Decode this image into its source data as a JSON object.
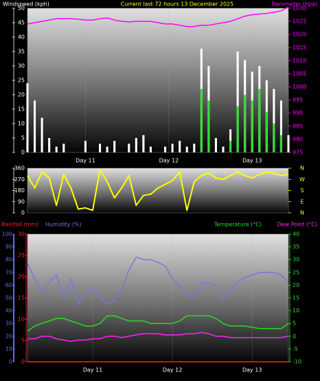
{
  "chart_data": [
    {
      "type": "bar",
      "title": "Current last 72 hours 13 December 2025",
      "x": [
        0,
        2,
        4,
        6,
        8,
        10,
        12,
        14,
        16,
        18,
        20,
        22,
        24,
        26,
        28,
        30,
        32,
        34,
        36,
        38,
        40,
        42,
        44,
        46,
        48,
        50,
        52,
        54,
        56,
        58,
        60,
        62,
        64,
        66,
        68,
        70,
        72
      ],
      "xlim": [
        0,
        72
      ],
      "xticks": [
        {
          "value": 16,
          "label": "Day 11"
        },
        {
          "value": 39,
          "label": "Day 12"
        },
        {
          "value": 62,
          "label": "Day 13"
        }
      ],
      "ylim": [
        0,
        50
      ],
      "yticks": [
        0,
        5,
        10,
        15,
        20,
        25,
        30,
        35,
        40,
        45,
        50
      ],
      "ycolor": "#ffffff",
      "y2lim": [
        975,
        1030
      ],
      "y2ticks": [
        975,
        980,
        985,
        990,
        995,
        1000,
        1005,
        1010,
        1015,
        1020,
        1025,
        1030
      ],
      "y2color": "#ff00ff",
      "series": [
        {
          "name": "Windspeed (kph)",
          "color": "#ffffff",
          "values": [
            24,
            18,
            12,
            5,
            2,
            3,
            0,
            0,
            4,
            0,
            3,
            2,
            4,
            0,
            3,
            5,
            6,
            2,
            0,
            2,
            3,
            4,
            2,
            3,
            36,
            30,
            5,
            2,
            8,
            35,
            32,
            28,
            30,
            25,
            22,
            18,
            6
          ]
        },
        {
          "color": "#33dd33",
          "values": [
            0,
            0,
            0,
            0,
            0,
            0,
            0,
            0,
            0,
            0,
            0,
            0,
            0,
            0,
            0,
            0,
            0,
            0,
            0,
            0,
            0,
            0,
            0,
            0,
            22,
            18,
            0,
            0,
            4,
            16,
            20,
            18,
            22,
            14,
            10,
            6,
            0
          ]
        },
        {
          "name": "Barometer (hpa)",
          "type": "line",
          "axis": "y2",
          "color": "#ff00ff",
          "values": [
            1024,
            1024.5,
            1025,
            1025.5,
            1026,
            1026,
            1026,
            1025.8,
            1025.5,
            1025.5,
            1026,
            1026.3,
            1025.5,
            1025,
            1024.8,
            1025,
            1025,
            1025,
            1024.5,
            1024,
            1024,
            1023.5,
            1023,
            1023,
            1023.5,
            1023.5,
            1024,
            1024.5,
            1025,
            1026,
            1027,
            1027.5,
            1027.8,
            1028,
            1028.5,
            1029,
            1030.5
          ]
        }
      ]
    },
    {
      "type": "line",
      "x": [
        0,
        2,
        4,
        6,
        8,
        10,
        12,
        14,
        16,
        18,
        20,
        22,
        24,
        26,
        28,
        30,
        32,
        34,
        36,
        38,
        40,
        42,
        44,
        46,
        48,
        50,
        52,
        54,
        56,
        58,
        60,
        62,
        64,
        66,
        68,
        70,
        72
      ],
      "xlim": [
        0,
        72
      ],
      "ylim": [
        0,
        360
      ],
      "yticks": [
        0,
        90,
        180,
        270,
        360
      ],
      "ycolor": "#ffffff",
      "y2lim": [
        0,
        360
      ],
      "y2ticks": [
        {
          "value": 360,
          "label": "N"
        },
        {
          "value": 270,
          "label": "W"
        },
        {
          "value": 180,
          "label": "S"
        },
        {
          "value": 90,
          "label": "E"
        },
        {
          "value": 0,
          "label": "N"
        }
      ],
      "y2color": "#ffff00",
      "series": [
        {
          "color": "#ffff00",
          "values": [
            300,
            200,
            330,
            280,
            60,
            310,
            200,
            30,
            40,
            20,
            350,
            250,
            120,
            200,
            300,
            60,
            140,
            150,
            200,
            230,
            260,
            330,
            20,
            250,
            300,
            320,
            280,
            270,
            300,
            330,
            300,
            280,
            310,
            330,
            320,
            300,
            310
          ]
        }
      ]
    },
    {
      "type": "line",
      "x": [
        0,
        2,
        4,
        6,
        8,
        10,
        12,
        14,
        16,
        18,
        20,
        22,
        24,
        26,
        28,
        30,
        32,
        34,
        36,
        38,
        40,
        42,
        44,
        46,
        48,
        50,
        52,
        54,
        56,
        58,
        60,
        62,
        64,
        66,
        68,
        70,
        72
      ],
      "xlim": [
        0,
        72
      ],
      "xticks": [
        {
          "value": 18,
          "label": "Day 11"
        },
        {
          "value": 40,
          "label": "Day 12"
        },
        {
          "value": 62,
          "label": "Day 13"
        }
      ],
      "ylim": [
        0,
        100
      ],
      "yticks": [
        0,
        10,
        20,
        30,
        40,
        50,
        60,
        70,
        80,
        90,
        100
      ],
      "ycolor": "#6666ff",
      "y3lim": [
        0,
        30
      ],
      "y3ticks": [
        0,
        5,
        10,
        15,
        20,
        25,
        30
      ],
      "y3color": "#ff2222",
      "y2lim": [
        -10,
        40
      ],
      "y2ticks": [
        -10,
        -5,
        0,
        5,
        10,
        15,
        20,
        25,
        30,
        35,
        40
      ],
      "y2color": "#33dd33",
      "series": [
        {
          "name": "Rainfall (mm)",
          "axis": "y3",
          "color": "#ff2222",
          "values": [
            0,
            0,
            0,
            0,
            0,
            0,
            0,
            0,
            0,
            0,
            0,
            0,
            0,
            0,
            0,
            0,
            0,
            0,
            0,
            0,
            0,
            0,
            0,
            0,
            0,
            0,
            0,
            0,
            0,
            0,
            0,
            0,
            0,
            0,
            0,
            0,
            0
          ]
        },
        {
          "name": "Humidity (%)",
          "color": "#7777dd",
          "values": [
            77,
            65,
            55,
            62,
            68,
            50,
            65,
            45,
            55,
            58,
            50,
            45,
            48,
            55,
            72,
            82,
            80,
            80,
            78,
            75,
            65,
            60,
            52,
            50,
            62,
            62,
            60,
            48,
            55,
            62,
            66,
            68,
            70,
            70,
            70,
            68,
            62
          ]
        },
        {
          "name": "Temperature (°C)",
          "axis": "y2",
          "color": "#22dd22",
          "values": [
            2,
            4,
            5,
            6,
            7,
            7,
            6,
            5,
            4,
            4,
            5,
            8,
            8,
            7,
            6,
            6,
            6,
            5,
            5,
            5,
            5,
            6,
            8,
            8,
            8,
            8,
            7,
            5,
            4,
            4,
            4,
            3.5,
            3,
            3,
            3,
            3,
            5
          ]
        },
        {
          "name": "Dew Point (°C)",
          "axis": "y2",
          "color": "#ff22ff",
          "values": [
            -1,
            -1,
            0,
            0,
            -1,
            -1.5,
            -2,
            -1.5,
            -1.5,
            -1,
            -1,
            0,
            0,
            -0.5,
            0,
            0.5,
            1,
            1,
            1,
            0.5,
            0.5,
            0.5,
            1,
            1,
            1.5,
            1,
            0,
            0,
            -0.5,
            -0.5,
            -0.5,
            -0.5,
            -0.5,
            -0.5,
            -0.5,
            -0.5,
            0
          ]
        }
      ]
    }
  ]
}
